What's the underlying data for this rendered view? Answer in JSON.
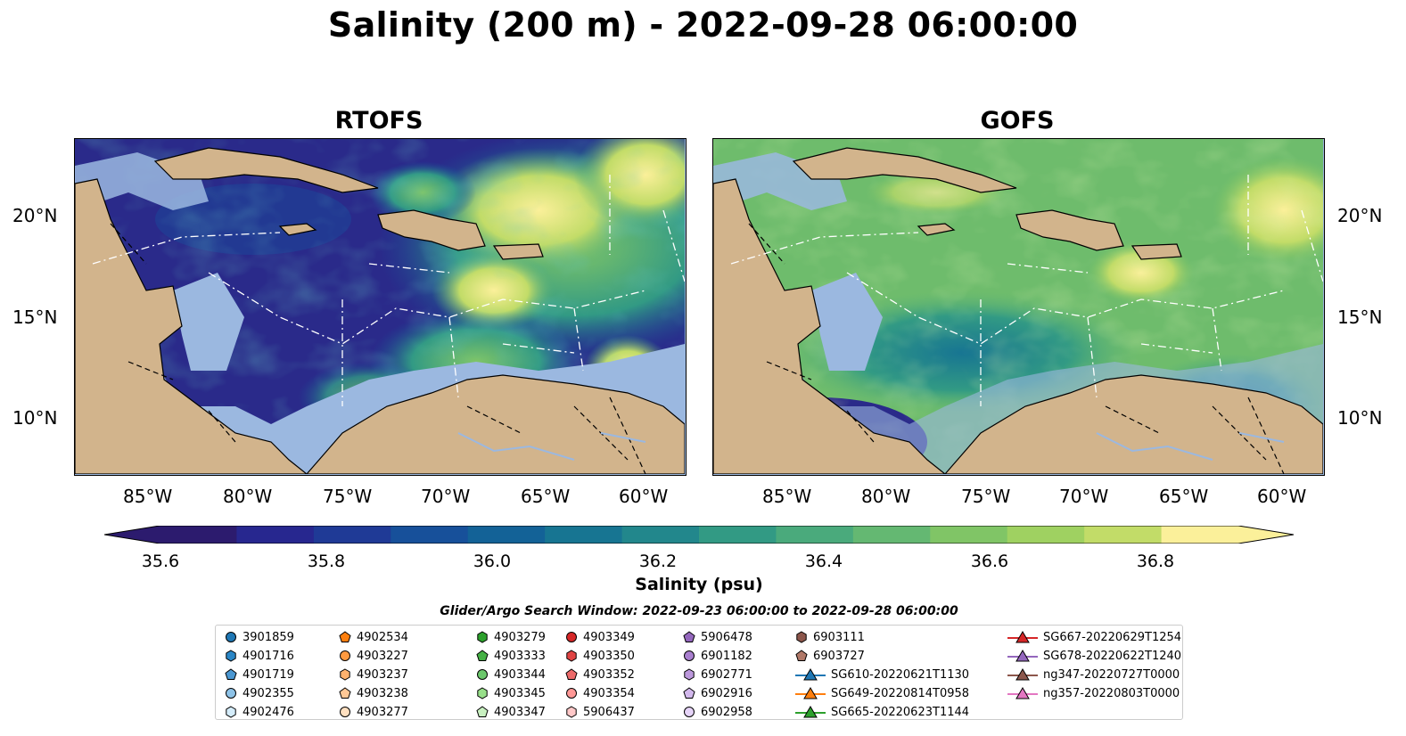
{
  "title": "Salinity (200 m) - 2022-09-28 06:00:00",
  "panels": [
    {
      "title": "RTOFS"
    },
    {
      "title": "GOFS"
    }
  ],
  "axes": {
    "lon_labels": [
      "85°W",
      "80°W",
      "75°W",
      "70°W",
      "65°W",
      "60°W"
    ],
    "lat_labels": [
      "20°N",
      "15°N",
      "10°N"
    ]
  },
  "colorbar": {
    "label": "Salinity (psu)",
    "ticks": [
      "35.6",
      "35.8",
      "36.0",
      "36.2",
      "36.4",
      "36.6",
      "36.8"
    ],
    "colors": [
      "#2c1b6e",
      "#27278f",
      "#1f3a96",
      "#17509a",
      "#136297",
      "#177592",
      "#22878c",
      "#329a84",
      "#4aaa7c",
      "#64b872",
      "#80c566",
      "#9fd161",
      "#c2dc68",
      "#fbf09a"
    ],
    "range": [
      35.5,
      36.9
    ],
    "extend": "both"
  },
  "legend": {
    "title": "Glider/Argo Search Window: 2022-09-23 06:00:00 to 2022-09-28 06:00:00",
    "items": [
      {
        "label": "3901859",
        "shape": "circle",
        "color": "#1f77b4"
      },
      {
        "label": "4901716",
        "shape": "hexagon",
        "color": "#2a86c6"
      },
      {
        "label": "4901719",
        "shape": "pentagon",
        "color": "#4b97d1"
      },
      {
        "label": "4902355",
        "shape": "circle",
        "color": "#8ec3e8"
      },
      {
        "label": "4902476",
        "shape": "hexagon",
        "color": "#d4ecfa"
      },
      {
        "label": "4902534",
        "shape": "pentagon",
        "color": "#ff7f0e"
      },
      {
        "label": "4903227",
        "shape": "circle",
        "color": "#ff9a40"
      },
      {
        "label": "4903237",
        "shape": "hexagon",
        "color": "#ffb26e"
      },
      {
        "label": "4903238",
        "shape": "pentagon",
        "color": "#ffc896"
      },
      {
        "label": "4903277",
        "shape": "circle",
        "color": "#ffe0c0"
      },
      {
        "label": "4903279",
        "shape": "hexagon",
        "color": "#2ca02c"
      },
      {
        "label": "4903333",
        "shape": "pentagon",
        "color": "#45b045"
      },
      {
        "label": "4903344",
        "shape": "circle",
        "color": "#6cc86c"
      },
      {
        "label": "4903345",
        "shape": "hexagon",
        "color": "#98df8a"
      },
      {
        "label": "4903347",
        "shape": "pentagon",
        "color": "#c8f0c0"
      },
      {
        "label": "4903349",
        "shape": "circle",
        "color": "#d62728"
      },
      {
        "label": "4903350",
        "shape": "hexagon",
        "color": "#e04444"
      },
      {
        "label": "4903352",
        "shape": "pentagon",
        "color": "#ec6a6a"
      },
      {
        "label": "4903354",
        "shape": "circle",
        "color": "#ff9896"
      },
      {
        "label": "5906437",
        "shape": "hexagon",
        "color": "#ffc8c8"
      },
      {
        "label": "5906478",
        "shape": "pentagon",
        "color": "#9467bd"
      },
      {
        "label": "6901182",
        "shape": "circle",
        "color": "#a97fcf"
      },
      {
        "label": "6902771",
        "shape": "hexagon",
        "color": "#bc98dc"
      },
      {
        "label": "6902916",
        "shape": "pentagon",
        "color": "#d2b8ec"
      },
      {
        "label": "6902958",
        "shape": "circle",
        "color": "#e6d4f8"
      },
      {
        "label": "6903111",
        "shape": "hexagon",
        "color": "#8c564b"
      },
      {
        "label": "6903727",
        "shape": "pentagon",
        "color": "#b07868"
      },
      {
        "label": "SG610-20220621T1130",
        "shape": "triangle",
        "color": "#1f77b4"
      },
      {
        "label": "SG649-20220814T0958",
        "shape": "triangle",
        "color": "#ff7f0e"
      },
      {
        "label": "SG665-20220623T1144",
        "shape": "triangle",
        "color": "#2ca02c"
      },
      {
        "label": "SG667-20220629T1254",
        "shape": "triangle",
        "color": "#d62728"
      },
      {
        "label": "SG678-20220622T1240",
        "shape": "triangle",
        "color": "#9467bd"
      },
      {
        "label": "ng347-20220727T0000",
        "shape": "triangle",
        "color": "#8c564b"
      },
      {
        "label": "ng357-20220803T0000",
        "shape": "triangle",
        "color": "#e377c2"
      }
    ]
  },
  "map_colors": {
    "land": "#d2b48c",
    "shallow_water": "#9bb8e0"
  }
}
